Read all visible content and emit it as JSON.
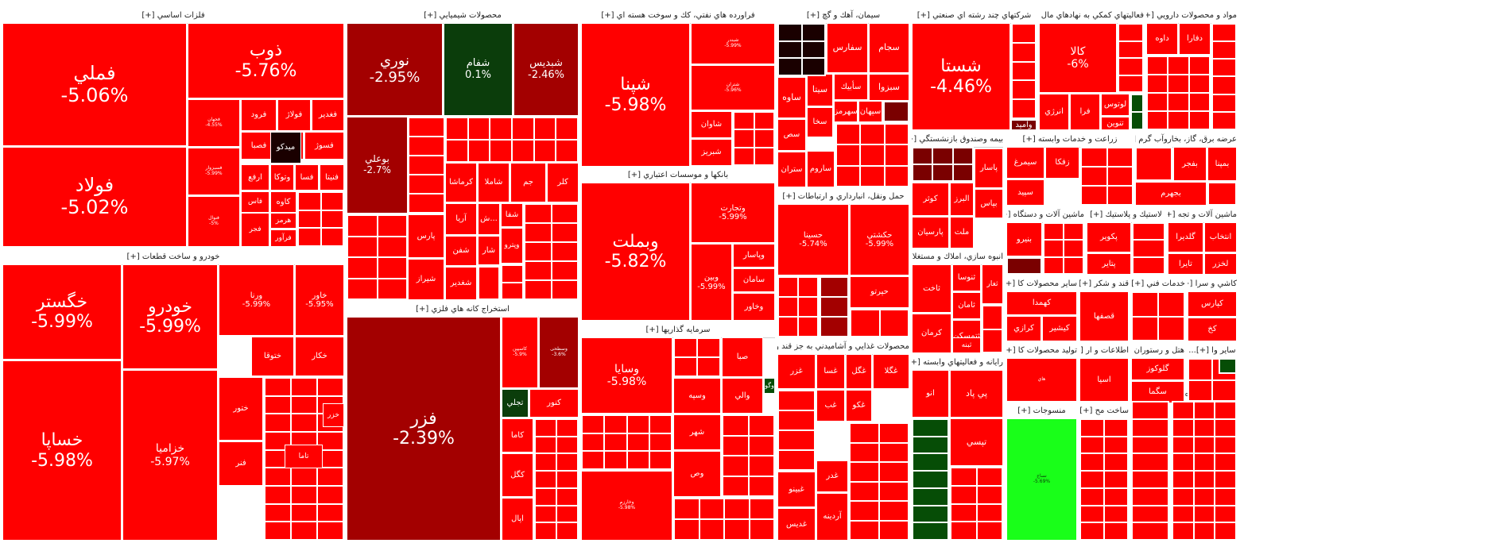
{
  "colors": {
    "red": "#ff0000",
    "mid": "#cc0000",
    "dark": "#a30000",
    "darker": "#7a0000",
    "black": "#1a0000",
    "green": "#0b3d0b",
    "lime": "#19ff19",
    "darkgreen": "#064d06"
  },
  "sectors": [
    {
      "title": "فلزات اساسي [+]"
    },
    {
      "title": "محصولات شيميايي [+]"
    },
    {
      "title": "فراورده هاي نفتي، كك و سوخت هسته اي [+]"
    },
    {
      "title": "سيمان، آهك و گچ [+]"
    },
    {
      "title": "شركتهاي چند رشته اي صنعتي [+]"
    },
    {
      "title": "فعاليتهاي كمكي به نهادهاي مال [+]..."
    },
    {
      "title": "مواد و محصولات دارويي [+]"
    },
    {
      "title": "خودرو و ساخت قطعات [+]"
    },
    {
      "title": "بانكها و موسسات اعتباري [+]"
    },
    {
      "title": "استخراج كانه هاي فلزي [+]"
    },
    {
      "title": "حمل ونقل، انبارداري و ارتباطات [+]"
    },
    {
      "title": "بيمه وصندوق بازنشستگي [+]..."
    },
    {
      "title": "زراعت و خدمات وابسته [+]"
    },
    {
      "title": "عرضه برق، گاز، بخاروآب گرم [+]"
    },
    {
      "title": "سرمايه گذاريها [+]"
    },
    {
      "title": "محصولات غذايي و آشاميدني به جز قند و [+]"
    },
    {
      "title": "انبوه سازي، املاك و مستغلات [+]"
    },
    {
      "title": "ماشين آلات و دستگاه [+]..."
    },
    {
      "title": "لاستيك و پلاستيك [+]"
    },
    {
      "title": "ماشين آلات و تجه [+]..."
    },
    {
      "title": "سایر محصولات کا [+]..."
    },
    {
      "title": "قند و شكر [+]"
    },
    {
      "title": "خدمات فني [+]..."
    },
    {
      "title": "كاشي و سرا [+]..."
    },
    {
      "title": "رايانه و فعاليتهاي وابسته [+]..."
    },
    {
      "title": "توليد محصولات كا [+]..."
    },
    {
      "title": "اطلاعات و ار [+]..."
    },
    {
      "title": "هتل و رستوران [+]"
    },
    {
      "title": "ساير وا [+]..."
    },
    {
      "title": "منسوجات [+]"
    },
    {
      "title": "ساخت مح [+]..."
    },
    {
      "title": "محصو [+]..."
    },
    {
      "title": "خرده [+]..."
    },
    {
      "title": "مخا [+]..."
    },
    {
      "title": "[+] اس..."
    },
    {
      "title": "[+] وا..."
    },
    {
      "title": "استخرا [+]..."
    },
    {
      "title": "حم [+]..."
    }
  ],
  "tiles": [
    {
      "sym": "فملي",
      "chg": "-5.06%"
    },
    {
      "sym": "ذوب",
      "chg": "-5.76%"
    },
    {
      "sym": "فولاد",
      "chg": "-5.02%"
    },
    {
      "sym": "فولاژ",
      "chg": ""
    },
    {
      "sym": "فغدير",
      "chg": ""
    },
    {
      "sym": "فرود",
      "chg": ""
    },
    {
      "sym": "فخوز",
      "chg": ""
    },
    {
      "sym": "فسوژ",
      "chg": ""
    },
    {
      "sym": "فصبا",
      "chg": ""
    },
    {
      "sym": "میدکو",
      "chg": ""
    },
    {
      "sym": "فسا",
      "chg": ""
    },
    {
      "sym": "فنیتا",
      "chg": ""
    },
    {
      "sym": "وتوكا",
      "chg": ""
    },
    {
      "sym": "ارفع",
      "chg": ""
    },
    {
      "sym": "كاوه",
      "chg": ""
    },
    {
      "sym": "فاس",
      "chg": ""
    },
    {
      "sym": "هرمز",
      "chg": ""
    },
    {
      "sym": "فجر",
      "chg": ""
    },
    {
      "sym": "فرآور",
      "chg": ""
    },
    {
      "sym": "فجهان",
      "chg": "-4.55%"
    },
    {
      "sym": "فسبزوار",
      "chg": "-5.99%"
    },
    {
      "sym": "فنوال",
      "chg": "-5%"
    },
    {
      "sym": "نوري",
      "chg": "-2.95%"
    },
    {
      "sym": "شفام",
      "chg": "0.1%"
    },
    {
      "sym": "شبديس",
      "chg": "-2.46%"
    },
    {
      "sym": "بوعلي",
      "chg": "-2.7%"
    },
    {
      "sym": "کرماشا",
      "chg": ""
    },
    {
      "sym": "شاملا",
      "chg": ""
    },
    {
      "sym": "جم",
      "chg": ""
    },
    {
      "sym": "كلر",
      "chg": ""
    },
    {
      "sym": "پارس",
      "chg": ""
    },
    {
      "sym": "آريا",
      "chg": ""
    },
    {
      "sym": "شفن",
      "chg": ""
    },
    {
      "sym": "شغدير",
      "chg": ""
    },
    {
      "sym": "شيراز",
      "chg": ""
    },
    {
      "sym": "ش...",
      "chg": ""
    },
    {
      "sym": "شفا",
      "chg": ""
    },
    {
      "sym": "شار",
      "chg": ""
    },
    {
      "sym": "وپترو",
      "chg": ""
    },
    {
      "sym": "شپنا",
      "chg": "-5.98%"
    },
    {
      "sym": "شاوان",
      "chg": ""
    },
    {
      "sym": "شبريز",
      "chg": ""
    },
    {
      "sym": "شبندر",
      "chg": "-5.99%"
    },
    {
      "sym": "شتران",
      "chg": "-5.96%"
    },
    {
      "sym": "سجام",
      "chg": ""
    },
    {
      "sym": "سفارس",
      "chg": ""
    },
    {
      "sym": "سبزوا",
      "chg": ""
    },
    {
      "sym": "ساوه",
      "chg": ""
    },
    {
      "sym": "سيتا",
      "chg": ""
    },
    {
      "sym": "سأبيك",
      "chg": ""
    },
    {
      "sym": "سهرمز",
      "chg": ""
    },
    {
      "sym": "سپهان",
      "chg": ""
    },
    {
      "sym": "سخا",
      "chg": ""
    },
    {
      "sym": "سص",
      "chg": ""
    },
    {
      "sym": "ساروم",
      "chg": ""
    },
    {
      "sym": "ستران",
      "chg": ""
    },
    {
      "sym": "شستا",
      "chg": "-4.46%"
    },
    {
      "sym": "واميد",
      "chg": ""
    },
    {
      "sym": "كالا",
      "chg": "-6%"
    },
    {
      "sym": "انرژي",
      "chg": ""
    },
    {
      "sym": "فرا",
      "chg": ""
    },
    {
      "sym": "لوتوس",
      "chg": ""
    },
    {
      "sym": "تنوين",
      "chg": ""
    },
    {
      "sym": "داوه",
      "chg": ""
    },
    {
      "sym": "دفارا",
      "chg": ""
    },
    {
      "sym": "خگستر",
      "chg": "-5.99%"
    },
    {
      "sym": "خودرو",
      "chg": "-5.99%"
    },
    {
      "sym": "خساپا",
      "chg": "-5.98%"
    },
    {
      "sym": "خزاميا",
      "chg": "-5.97%"
    },
    {
      "sym": "ورنا",
      "chg": "-5.99%"
    },
    {
      "sym": "خاور",
      "chg": "-5.95%"
    },
    {
      "sym": "ختوقا",
      "chg": ""
    },
    {
      "sym": "خكار",
      "chg": ""
    },
    {
      "sym": "ختور",
      "chg": ""
    },
    {
      "sym": "فنر",
      "chg": ""
    },
    {
      "sym": "خزر",
      "chg": ""
    },
    {
      "sym": "تاما",
      "chg": ""
    },
    {
      "sym": "وبملت",
      "chg": "-5.82%"
    },
    {
      "sym": "وتجارت",
      "chg": "-5.99%"
    },
    {
      "sym": "وبين",
      "chg": "-5.99%"
    },
    {
      "sym": "وپاسار",
      "chg": ""
    },
    {
      "sym": "سامان",
      "chg": ""
    },
    {
      "sym": "وخاور",
      "chg": ""
    },
    {
      "sym": "فزر",
      "chg": "-2.39%"
    },
    {
      "sym": "كاسپين",
      "chg": "-5.9%"
    },
    {
      "sym": "وسطحی",
      "chg": "-3.6%"
    },
    {
      "sym": "تجلي",
      "chg": ""
    },
    {
      "sym": "كنور",
      "chg": ""
    },
    {
      "sym": "كاما",
      "chg": ""
    },
    {
      "sym": "كگل",
      "chg": ""
    },
    {
      "sym": "اپال",
      "chg": ""
    },
    {
      "sym": "حسينا",
      "chg": "-5.74%"
    },
    {
      "sym": "حكشتي",
      "chg": "-5.99%"
    },
    {
      "sym": "حپرتو",
      "chg": ""
    },
    {
      "sym": "البرز",
      "chg": ""
    },
    {
      "sym": "كوثر",
      "chg": ""
    },
    {
      "sym": "پاسار",
      "chg": ""
    },
    {
      "sym": "ملت",
      "chg": ""
    },
    {
      "sym": "پارسيان",
      "chg": ""
    },
    {
      "sym": "بپاس",
      "chg": ""
    },
    {
      "sym": "سيمرغ",
      "chg": ""
    },
    {
      "sym": "زفكا",
      "chg": ""
    },
    {
      "sym": "سپيد",
      "chg": ""
    },
    {
      "sym": "بمپنا",
      "chg": ""
    },
    {
      "sym": "بفجر",
      "chg": ""
    },
    {
      "sym": "بجهرم",
      "chg": ""
    },
    {
      "sym": "وسايا",
      "chg": "-5.98%"
    },
    {
      "sym": "صبا",
      "chg": ""
    },
    {
      "sym": "وسپه",
      "chg": ""
    },
    {
      "sym": "والي",
      "chg": ""
    },
    {
      "sym": "شهر",
      "chg": ""
    },
    {
      "sym": "وص",
      "chg": ""
    },
    {
      "sym": "وخارزم",
      "chg": "-5.98%"
    },
    {
      "sym": "وگو",
      "chg": ""
    },
    {
      "sym": "غزر",
      "chg": ""
    },
    {
      "sym": "غبينو",
      "chg": ""
    },
    {
      "sym": "غديس",
      "chg": ""
    },
    {
      "sym": "غدر",
      "chg": ""
    },
    {
      "sym": "غگلا",
      "chg": ""
    },
    {
      "sym": "غگل",
      "chg": ""
    },
    {
      "sym": "غسا",
      "chg": ""
    },
    {
      "sym": "غكو",
      "chg": ""
    },
    {
      "sym": "آردينه",
      "chg": ""
    },
    {
      "sym": "غب",
      "chg": ""
    },
    {
      "sym": "ثاخت",
      "chg": ""
    },
    {
      "sym": "ثنوسا",
      "chg": ""
    },
    {
      "sym": "ثامان",
      "chg": ""
    },
    {
      "sym": "ثتمسكن",
      "chg": ""
    },
    {
      "sym": "كرمان",
      "chg": ""
    },
    {
      "sym": "ثبنه",
      "chg": ""
    },
    {
      "sym": "ثغار",
      "chg": ""
    },
    {
      "sym": "بنيرو",
      "chg": ""
    },
    {
      "sym": "پكوير",
      "chg": ""
    },
    {
      "sym": "پتاير",
      "chg": ""
    },
    {
      "sym": "گلديرا",
      "chg": ""
    },
    {
      "sym": "تايرا",
      "chg": ""
    },
    {
      "sym": "انتخاب",
      "chg": ""
    },
    {
      "sym": "لخزر",
      "chg": ""
    },
    {
      "sym": "كهمدا",
      "chg": ""
    },
    {
      "sym": "كرازي",
      "chg": ""
    },
    {
      "sym": "كيشير",
      "chg": ""
    },
    {
      "sym": "قصفها",
      "chg": ""
    },
    {
      "sym": "كپارس",
      "chg": ""
    },
    {
      "sym": "كخ",
      "chg": ""
    },
    {
      "sym": "پي پاد",
      "chg": ""
    },
    {
      "sym": "تپسي",
      "chg": ""
    },
    {
      "sym": "انو",
      "chg": ""
    },
    {
      "sym": "گلوكوز",
      "chg": ""
    },
    {
      "sym": "سگما",
      "chg": ""
    },
    {
      "sym": "اسيا",
      "chg": ""
    },
    {
      "sym": "هاي",
      "chg": ""
    },
    {
      "sym": "نساج",
      "chg": "-5.69%"
    },
    {
      "sym": "بنیان",
      "chg": "-5.69%"
    }
  ]
}
